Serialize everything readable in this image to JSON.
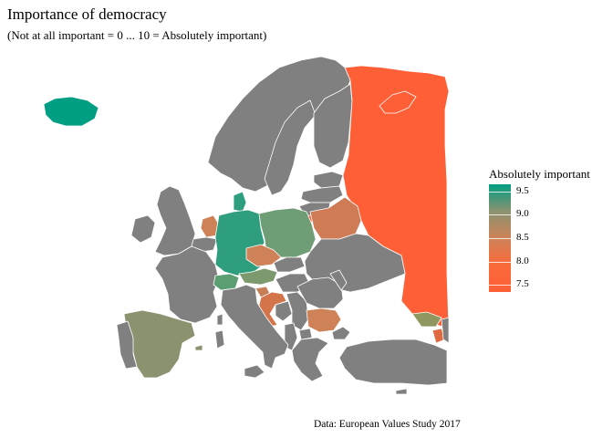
{
  "title": "Importance of democracy",
  "subtitle": "(Not at all important = 0 ... 10 = Absolutely important)",
  "caption": "Data: European Values Study 2017",
  "legend": {
    "title": "Absolutely important",
    "ticks": [
      "9.5",
      "9.0",
      "8.5",
      "8.0",
      "7.5"
    ],
    "tick_values": [
      9.5,
      9.0,
      8.5,
      8.0,
      7.5
    ],
    "range": [
      7.35,
      9.65
    ],
    "colors": {
      "high": "#009e82",
      "mid_high": "#8a9270",
      "mid": "#cf8257",
      "low": "#ff5f36"
    }
  },
  "colors": {
    "no_data": "#808080",
    "border": "#ffffff"
  },
  "regions": [
    {
      "name": "Iceland",
      "value": 9.5
    },
    {
      "name": "Germany",
      "value": 9.3
    },
    {
      "name": "Denmark",
      "value": 9.3
    },
    {
      "name": "Switzerland",
      "value": 9.1
    },
    {
      "name": "Poland",
      "value": 8.9
    },
    {
      "name": "Spain",
      "value": 8.8
    },
    {
      "name": "Netherlands",
      "value": 8.3
    },
    {
      "name": "Czechia",
      "value": 8.2
    },
    {
      "name": "Austria",
      "value": 8.8
    },
    {
      "name": "Slovenia",
      "value": 8.3
    },
    {
      "name": "Croatia",
      "value": 8.0
    },
    {
      "name": "Belarus",
      "value": 8.1
    },
    {
      "name": "Bulgaria",
      "value": 8.1
    },
    {
      "name": "Georgia",
      "value": 8.8
    },
    {
      "name": "Armenia",
      "value": 7.8
    },
    {
      "name": "Russia",
      "value": 7.5
    },
    {
      "name": "Lithuania (Kaliningrad)",
      "value": 7.5
    }
  ]
}
